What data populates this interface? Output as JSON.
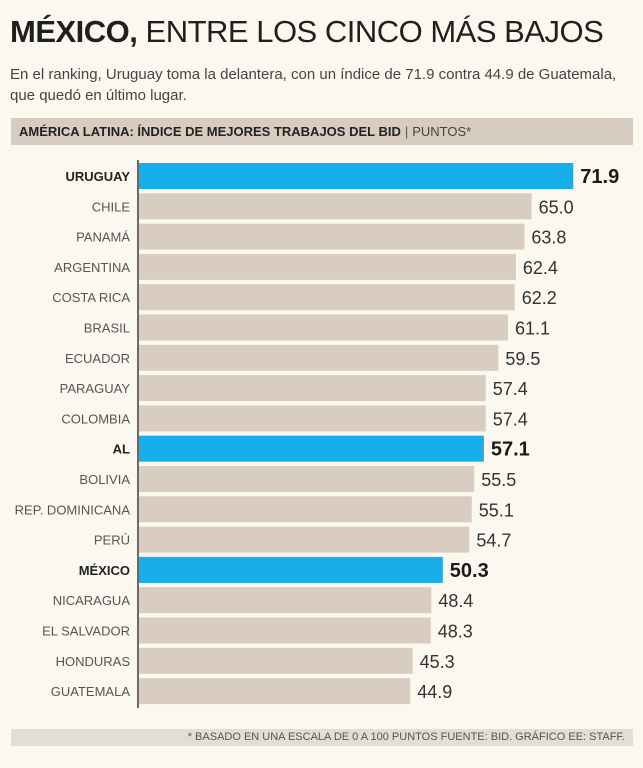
{
  "header": {
    "title_bold": "MÉXICO,",
    "title_rest": "ENTRE LOS CINCO MÁS BAJOS",
    "subtitle": "En el ranking, Uruguay toma la delantera, con un índice de 71.9 contra 44.9 de Guatemala, que quedó en último lugar."
  },
  "chart_header": {
    "title": "AMÉRICA LATINA: ÍNDICE DE MEJORES TRABAJOS DEL BID",
    "separator": "|",
    "unit": "PUNTOS*"
  },
  "footer": {
    "note": "* BASADO EN UNA ESCALA DE 0 A 100 PUNTOS  FUENTE: BID. GRÁFICO EE: STAFF."
  },
  "colors": {
    "highlight": "#18aeeb",
    "bar": "#d8cdc0",
    "axis": "#3a3a3a",
    "label": "#555555",
    "label_highlight": "#222222"
  },
  "chart_data": {
    "type": "bar",
    "orientation": "horizontal",
    "title": "AMÉRICA LATINA: ÍNDICE DE MEJORES TRABAJOS DEL BID",
    "unit": "PUNTOS*",
    "xlim": [
      0,
      100
    ],
    "grid": false,
    "categories": [
      "URUGUAY",
      "CHILE",
      "PANAMÁ",
      "ARGENTINA",
      "COSTA RICA",
      "BRASIL",
      "ECUADOR",
      "PARAGUAY",
      "COLOMBIA",
      "AL",
      "BOLIVIA",
      "REP. DOMINICANA",
      "PERÚ",
      "MÉXICO",
      "NICARAGUA",
      "EL SALVADOR",
      "HONDURAS",
      "GUATEMALA"
    ],
    "values": [
      71.9,
      65.0,
      63.8,
      62.4,
      62.2,
      61.1,
      59.5,
      57.4,
      57.4,
      57.1,
      55.5,
      55.1,
      54.7,
      50.3,
      48.4,
      48.3,
      45.3,
      44.9
    ],
    "value_labels": [
      "71.9",
      "65.0",
      "63.8",
      "62.4",
      "62.2",
      "61.1",
      "59.5",
      "57.4",
      "57.4",
      "57.1",
      "55.5",
      "55.1",
      "54.7",
      "50.3",
      "48.4",
      "48.3",
      "45.3",
      "44.9"
    ],
    "highlighted": [
      "URUGUAY",
      "AL",
      "MÉXICO"
    ]
  }
}
